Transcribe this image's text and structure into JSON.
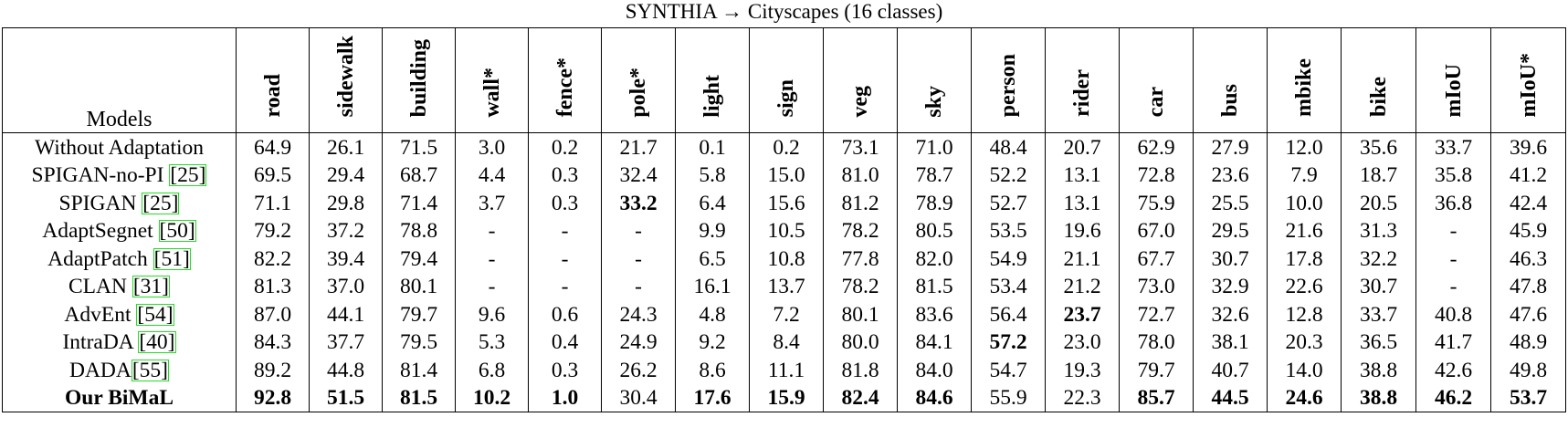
{
  "caption": "SYNTHIA → Cityscapes (16 classes)",
  "table": {
    "model_header": "Models",
    "columns": [
      "road",
      "sidewalk",
      "building",
      "wall*",
      "fence*",
      "pole*",
      "light",
      "sign",
      "veg",
      "sky",
      "person",
      "rider",
      "car",
      "bus",
      "mbike",
      "bike",
      "mIoU",
      "mIoU*"
    ],
    "rows": [
      {
        "model": "Without Adaptation",
        "cite": "",
        "values": [
          "64.9",
          "26.1",
          "71.5",
          "3.0",
          "0.2",
          "21.7",
          "0.1",
          "0.2",
          "73.1",
          "71.0",
          "48.4",
          "20.7",
          "62.9",
          "27.9",
          "12.0",
          "35.6",
          "33.7",
          "39.6"
        ],
        "bold": []
      },
      {
        "model": "SPIGAN-no-PI ",
        "cite": "[25]",
        "values": [
          "69.5",
          "29.4",
          "68.7",
          "4.4",
          "0.3",
          "32.4",
          "5.8",
          "15.0",
          "81.0",
          "78.7",
          "52.2",
          "13.1",
          "72.8",
          "23.6",
          "7.9",
          "18.7",
          "35.8",
          "41.2"
        ],
        "bold": []
      },
      {
        "model": "SPIGAN ",
        "cite": "[25]",
        "values": [
          "71.1",
          "29.8",
          "71.4",
          "3.7",
          "0.3",
          "33.2",
          "6.4",
          "15.6",
          "81.2",
          "78.9",
          "52.7",
          "13.1",
          "75.9",
          "25.5",
          "10.0",
          "20.5",
          "36.8",
          "42.4"
        ],
        "bold": [
          5
        ]
      },
      {
        "model": "AdaptSegnet ",
        "cite": "[50]",
        "values": [
          "79.2",
          "37.2",
          "78.8",
          "-",
          "-",
          "-",
          "9.9",
          "10.5",
          "78.2",
          "80.5",
          "53.5",
          "19.6",
          "67.0",
          "29.5",
          "21.6",
          "31.3",
          "-",
          "45.9"
        ],
        "bold": []
      },
      {
        "model": "AdaptPatch ",
        "cite": "[51]",
        "values": [
          "82.2",
          "39.4",
          "79.4",
          "-",
          "-",
          "-",
          "6.5",
          "10.8",
          "77.8",
          "82.0",
          "54.9",
          "21.1",
          "67.7",
          "30.7",
          "17.8",
          "32.2",
          "-",
          "46.3"
        ],
        "bold": []
      },
      {
        "model": "CLAN ",
        "cite": "[31]",
        "values": [
          "81.3",
          "37.0",
          "80.1",
          "-",
          "-",
          "-",
          "16.1",
          "13.7",
          "78.2",
          "81.5",
          "53.4",
          "21.2",
          "73.0",
          "32.9",
          "22.6",
          "30.7",
          "-",
          "47.8"
        ],
        "bold": []
      },
      {
        "model": "AdvEnt ",
        "cite": "[54]",
        "values": [
          "87.0",
          "44.1",
          "79.7",
          "9.6",
          "0.6",
          "24.3",
          "4.8",
          "7.2",
          "80.1",
          "83.6",
          "56.4",
          "23.7",
          "72.7",
          "32.6",
          "12.8",
          "33.7",
          "40.8",
          "47.6"
        ],
        "bold": [
          11
        ]
      },
      {
        "model": "IntraDA ",
        "cite": "[40]",
        "values": [
          "84.3",
          "37.7",
          "79.5",
          "5.3",
          "0.4",
          "24.9",
          "9.2",
          "8.4",
          "80.0",
          "84.1",
          "57.2",
          "23.0",
          "78.0",
          "38.1",
          "20.3",
          "36.5",
          "41.7",
          "48.9"
        ],
        "bold": [
          10
        ]
      },
      {
        "model": "DADA",
        "cite": "[55]",
        "values": [
          "89.2",
          "44.8",
          "81.4",
          "6.8",
          "0.3",
          "26.2",
          "8.6",
          "11.1",
          "81.8",
          "84.0",
          "54.7",
          "19.3",
          "79.7",
          "40.7",
          "14.0",
          "38.8",
          "42.6",
          "49.8"
        ],
        "bold": []
      },
      {
        "model": "Our BiMaL",
        "cite": "",
        "values": [
          "92.8",
          "51.5",
          "81.5",
          "10.2",
          "1.0",
          "30.4",
          "17.6",
          "15.9",
          "82.4",
          "84.6",
          "55.9",
          "22.3",
          "85.7",
          "44.5",
          "24.6",
          "38.8",
          "46.2",
          "53.7"
        ],
        "bold": [
          0,
          1,
          2,
          3,
          4,
          6,
          7,
          8,
          9,
          12,
          13,
          14,
          15,
          16,
          17
        ]
      }
    ]
  }
}
